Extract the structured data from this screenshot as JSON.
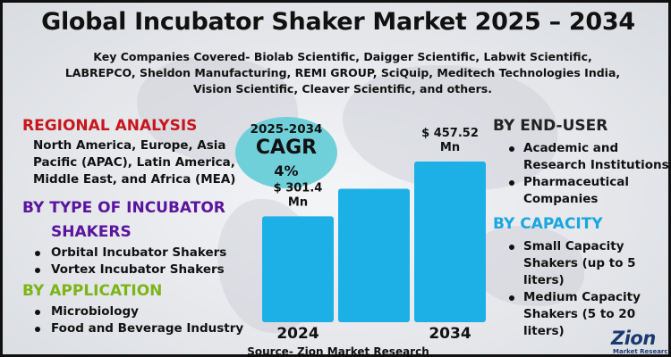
{
  "title": "Global Incubator Shaker Market 2025 – 2034",
  "companies": "Key Companies Covered- Biolab Scientific, Daigger Scientific, Labwit Scientific, LABREPCO, Sheldon Manufacturing, REMI GROUP, SciQuip, Meditech Technologies India, Vision Scientific, Cleaver Scientific, and others.",
  "regional": {
    "heading": "REGIONAL ANALYSIS",
    "text": "North America, Europe, Asia Pacific (APAC), Latin America, Middle East, and Africa (MEA)"
  },
  "type": {
    "heading_line1": "BY TYPE OF INCUBATOR",
    "heading_line2": "SHAKERS",
    "items": [
      "Orbital Incubator Shakers",
      "Vortex Incubator Shakers"
    ]
  },
  "application": {
    "heading": "BY APPLICATION",
    "items": [
      "Microbiology",
      "Food and Beverage Industry"
    ]
  },
  "end_user": {
    "heading": "BY END-USER",
    "items": [
      "Academic and Research Institutions",
      "Pharmaceutical Companies"
    ]
  },
  "capacity": {
    "heading": "BY CAPACITY",
    "items": [
      "Small Capacity Shakers (up to 5 liters)",
      "Medium Capacity Shakers (5 to 20 liters)"
    ]
  },
  "cagr": {
    "years": "2025-2034",
    "label": "CAGR",
    "value": "4%"
  },
  "source": "Source- Zion Market Research",
  "logo": {
    "main": "Zion",
    "sub": "Market Research"
  },
  "colors": {
    "bar": "#1cb0e6",
    "cagr_bubble": "#6fd0d9",
    "red_heading": "#c8161d",
    "purple_heading": "#5a159e",
    "green_heading": "#7cb518",
    "blue_heading": "#1aa6e0"
  },
  "chart_data": {
    "type": "bar",
    "categories": [
      "2024",
      "",
      "2034"
    ],
    "values": [
      301.4,
      380,
      457.52
    ],
    "data_labels": [
      "$ 301.4 Mn",
      "",
      "$ 457.52 Mn"
    ]
  }
}
